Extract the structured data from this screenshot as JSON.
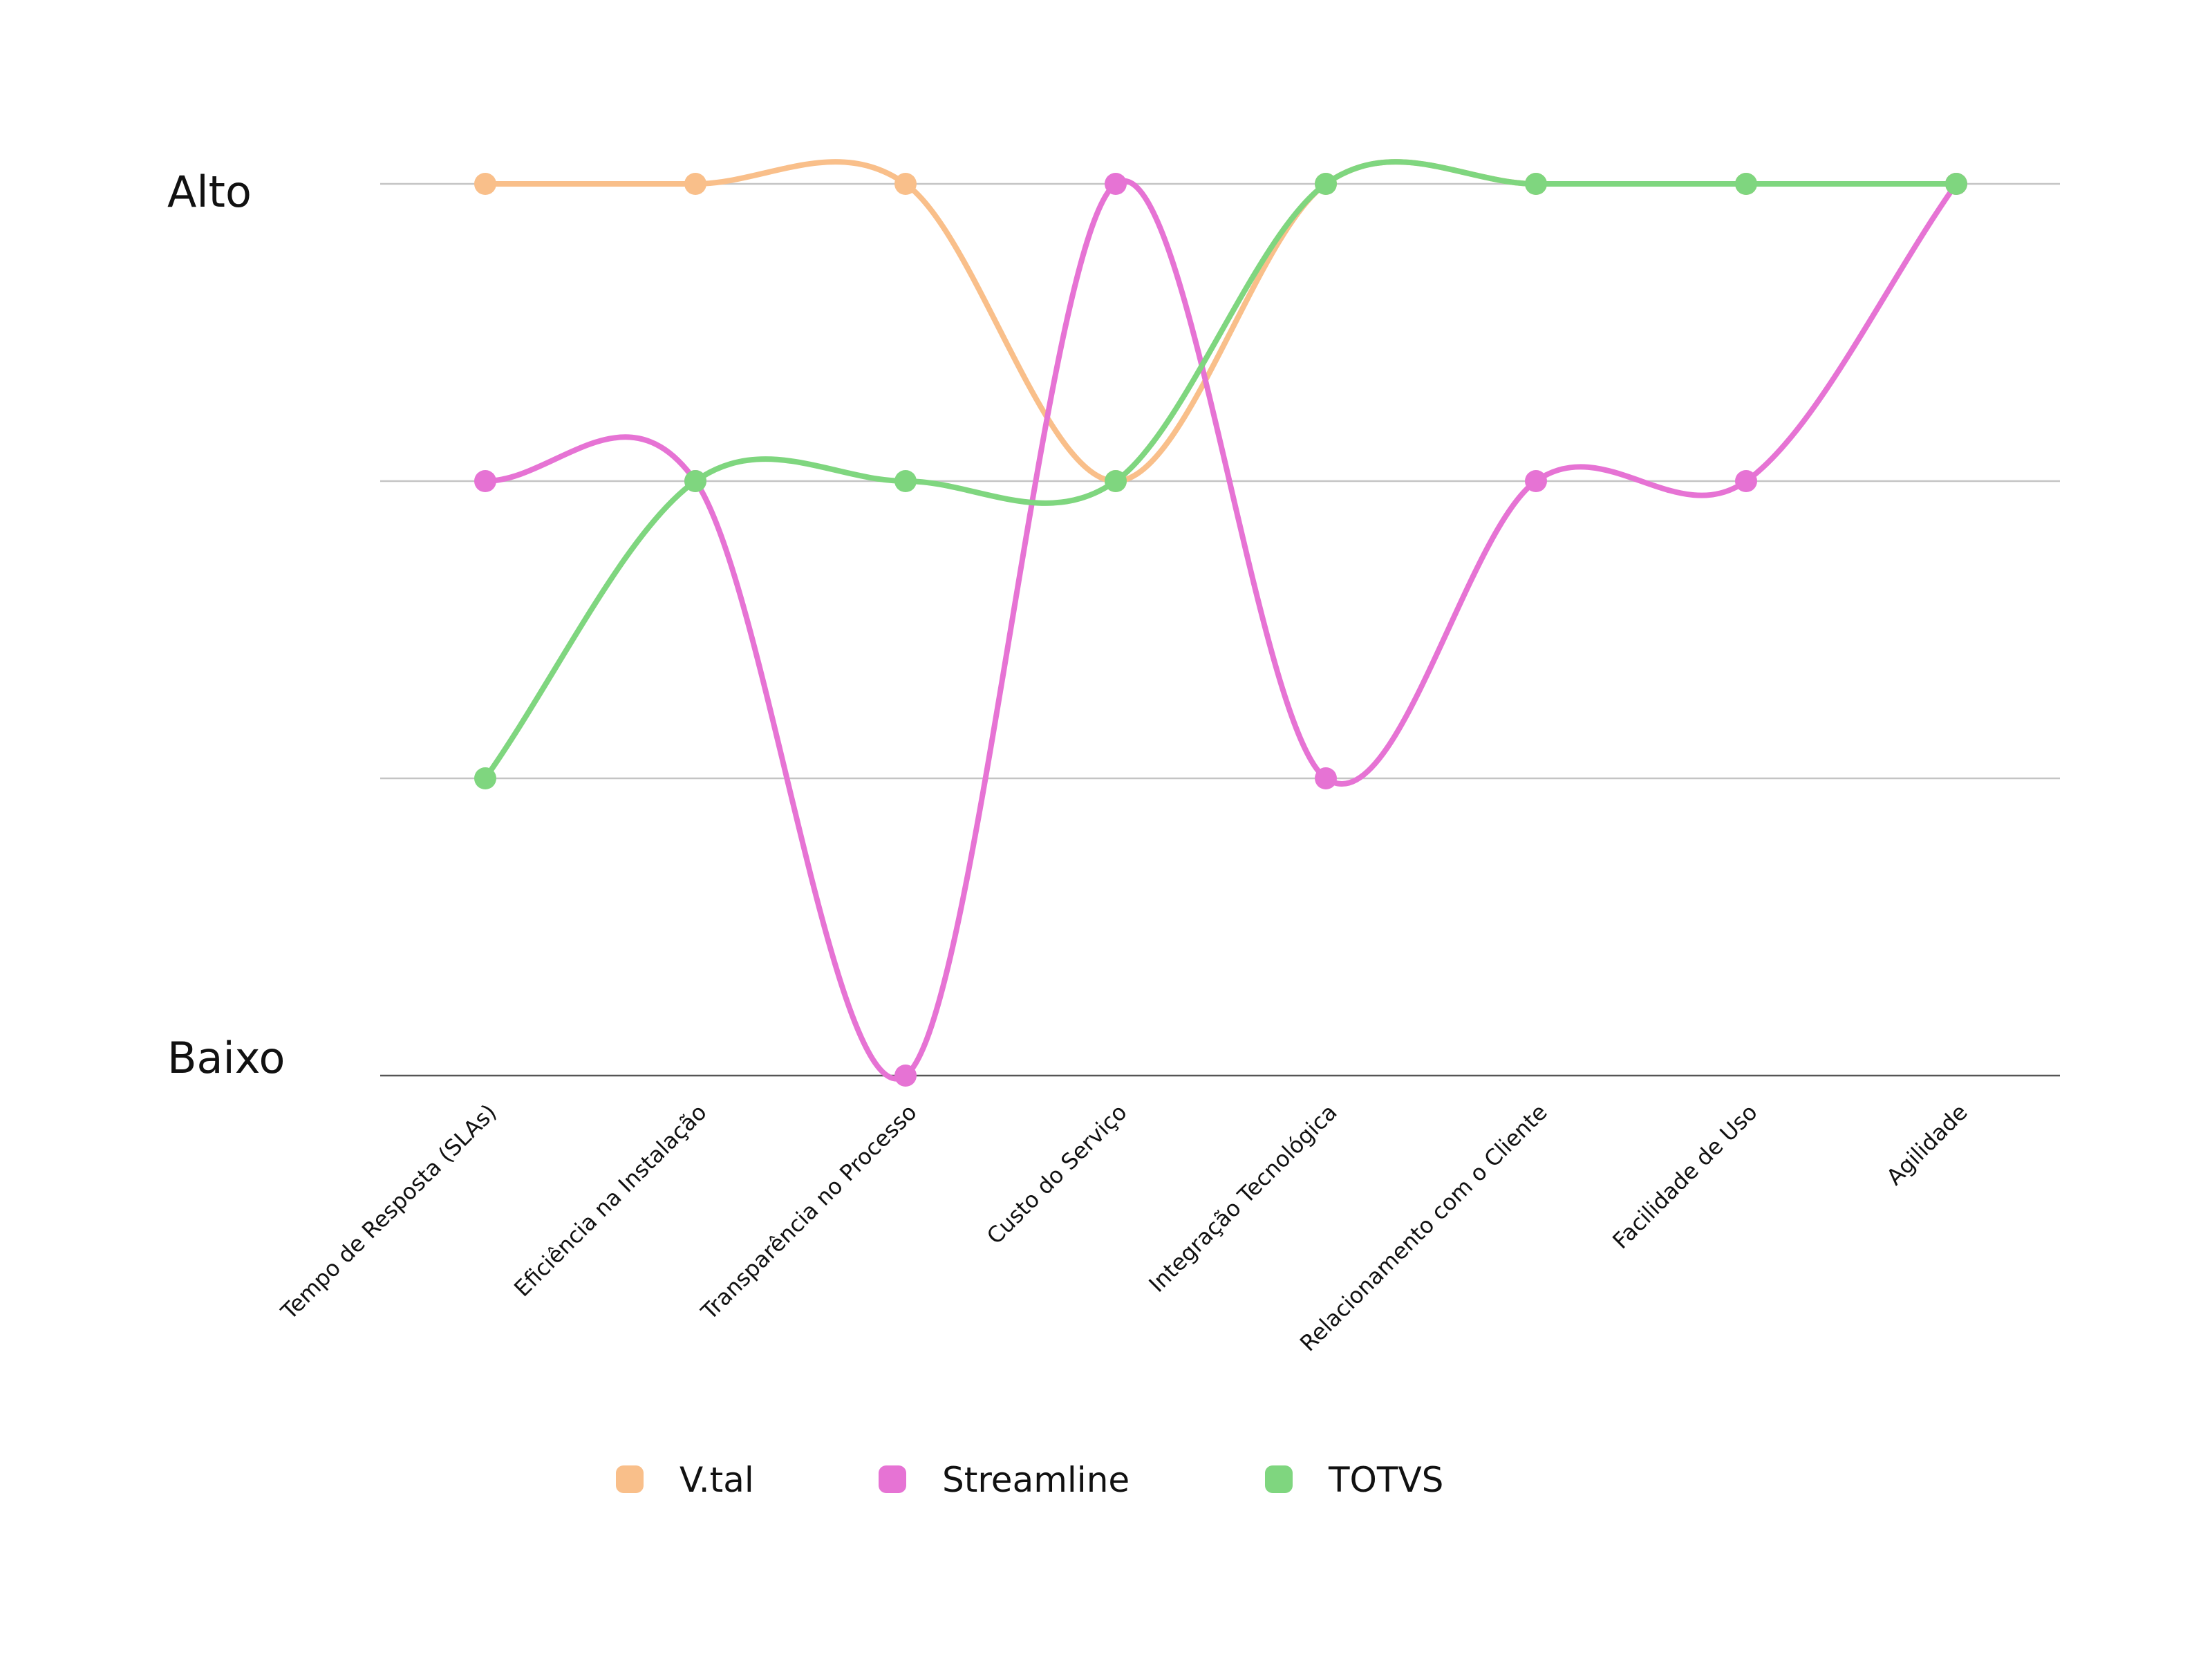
{
  "chart_data": {
    "type": "line",
    "smooth": true,
    "categories": [
      "Tempo de Resposta (SLAs)",
      "Eficiência na Instalação",
      "Transparência no Processo",
      "Custo do Serviço",
      "Integração Tecnológica",
      "Relacionamento com o Cliente",
      "Facilidade de Uso",
      "Agilidade"
    ],
    "y_tick_labels": {
      "high": "Alto",
      "low": "Baixo"
    },
    "ylim": [
      0,
      3
    ],
    "grid": true,
    "legend_position": "bottom",
    "series": [
      {
        "name": "V.tal",
        "color": "#f9bf8a",
        "values": [
          3,
          3,
          3,
          2,
          3,
          3,
          3,
          3
        ]
      },
      {
        "name": "Streamline",
        "color": "#e673d4",
        "values": [
          2,
          2,
          0,
          3,
          1,
          2,
          2,
          3
        ]
      },
      {
        "name": "TOTVS",
        "color": "#7fd67f",
        "values": [
          1,
          2,
          2,
          2,
          3,
          3,
          3,
          3
        ]
      }
    ]
  }
}
